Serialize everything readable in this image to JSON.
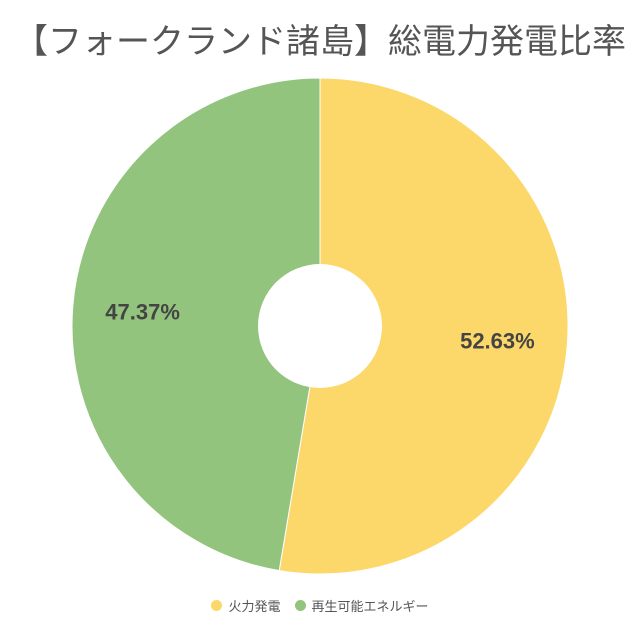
{
  "chart_data": {
    "type": "pie",
    "variant": "donut",
    "title": "【フォークランド諸島】総電力発電比率",
    "slices": [
      {
        "name": "火力発電",
        "value": 52.63,
        "label": "52.63%",
        "color": "#FCD769"
      },
      {
        "name": "再生可能エネルギー",
        "value": 47.37,
        "label": "47.37%",
        "color": "#93C47D"
      }
    ],
    "start": "12 o'clock",
    "direction": "clockwise",
    "legend_position": "bottom"
  },
  "legend": {
    "items": [
      {
        "label": "火力発電",
        "color": "#FCD769"
      },
      {
        "label": "再生可能エネルギー",
        "color": "#93C47D"
      }
    ]
  }
}
